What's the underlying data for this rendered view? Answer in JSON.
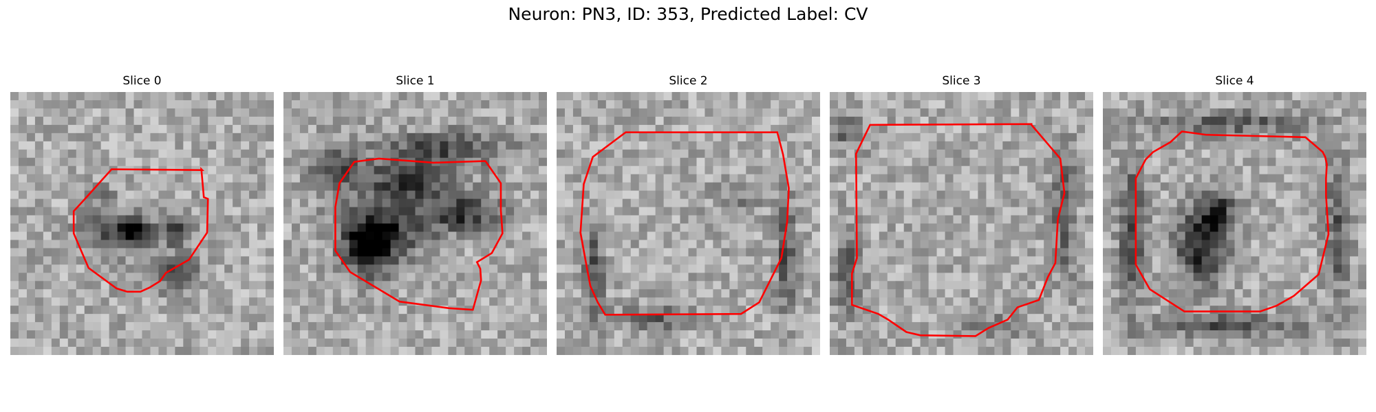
{
  "figure": {
    "title": "Neuron: PN3, ID: 353, Predicted Label: CV"
  },
  "panels": [
    {
      "title": "Slice 0",
      "contour": [
        [
          7.8,
          -6
        ],
        [
          -3.2,
          -6.1
        ],
        [
          -6.7,
          -2.2
        ],
        [
          -7.8,
          -1
        ],
        [
          -7.8,
          1.7
        ],
        [
          -6,
          5.9
        ],
        [
          -2.6,
          8.4
        ],
        [
          -1.3,
          8.8
        ],
        [
          0.3,
          8.8
        ],
        [
          1.4,
          8.3
        ],
        [
          2.7,
          7.5
        ],
        [
          3.4,
          6.5
        ],
        [
          6.2,
          4.9
        ],
        [
          8.4,
          1.6
        ],
        [
          8.5,
          -2.5
        ],
        [
          8,
          -2.7
        ],
        [
          7.7,
          -6.1
        ]
      ],
      "dark_regions": [
        [
          -3,
          1.2,
          4.5,
          2.2,
          0.7
        ],
        [
          -0.9,
          0.6,
          1.6,
          1.3,
          0.9
        ],
        [
          4.2,
          0.8,
          1.9,
          1.6,
          0.8
        ],
        [
          3.6,
          5.9,
          3.5,
          2.2,
          0.5
        ],
        [
          -5,
          -3.5,
          2,
          1.3,
          0.35
        ]
      ]
    },
    {
      "title": "Slice 1",
      "contour": [
        [
          9,
          -7.1
        ],
        [
          2.7,
          -6.9
        ],
        [
          -3.9,
          -7.4
        ],
        [
          -6.9,
          -7
        ],
        [
          -8.7,
          -4.4
        ],
        [
          -9.2,
          -1.5
        ],
        [
          -9.2,
          3.8
        ],
        [
          -7.4,
          6.4
        ],
        [
          -1.4,
          10
        ],
        [
          4.6,
          10.8
        ],
        [
          7.5,
          11
        ],
        [
          8.5,
          7.4
        ],
        [
          8.4,
          6
        ],
        [
          8,
          5.2
        ],
        [
          9.8,
          4.1
        ],
        [
          11.1,
          1.7
        ],
        [
          10.9,
          -1.1
        ],
        [
          10.9,
          -4.4
        ],
        [
          9.1,
          -7
        ]
      ],
      "dark_regions": [
        [
          -5.6,
          3.2,
          3,
          3.6,
          0.95
        ],
        [
          -3.6,
          0.8,
          5.4,
          3.2,
          0.75
        ],
        [
          -1,
          -5.1,
          4.7,
          2.5,
          0.85
        ],
        [
          5.8,
          -1.3,
          4.4,
          2.3,
          0.8
        ],
        [
          3,
          -9,
          8,
          2.2,
          0.6
        ],
        [
          -10,
          -6.5,
          3,
          3,
          0.7
        ]
      ]
    },
    {
      "title": "Slice 2",
      "contour": [
        [
          11.2,
          -10.6
        ],
        [
          -7.1,
          -10.6
        ],
        [
          -11.1,
          -7.6
        ],
        [
          -12.2,
          -4.3
        ],
        [
          -12.6,
          1.6
        ],
        [
          -11.8,
          6
        ],
        [
          -11.4,
          8.1
        ],
        [
          -10.5,
          10.1
        ],
        [
          -9.6,
          11.6
        ],
        [
          6.9,
          11.5
        ],
        [
          9.1,
          10.1
        ],
        [
          11.8,
          4.7
        ],
        [
          12.5,
          0.3
        ],
        [
          12.7,
          -3.8
        ],
        [
          12,
          -7.9
        ],
        [
          11.3,
          -10.6
        ]
      ],
      "dark_regions": [
        [
          -11.5,
          6,
          1.2,
          6,
          0.6
        ],
        [
          11.8,
          4,
          1.2,
          7,
          0.6
        ],
        [
          -4,
          11.5,
          4,
          1.4,
          0.5
        ],
        [
          6,
          -3,
          3,
          2,
          0.3
        ]
      ]
    },
    {
      "title": "Slice 3",
      "contour": [
        [
          9,
          -11.6
        ],
        [
          -10.6,
          -11.5
        ],
        [
          -12.3,
          -8
        ],
        [
          -12.2,
          4.7
        ],
        [
          -12.8,
          6.6
        ],
        [
          -12.8,
          10.4
        ],
        [
          -9.6,
          11.5
        ],
        [
          -8.4,
          12.2
        ],
        [
          -6.2,
          13.7
        ],
        [
          -4.5,
          14.1
        ],
        [
          2.2,
          14.2
        ],
        [
          3.8,
          13.2
        ],
        [
          6.1,
          12.2
        ],
        [
          7.3,
          10.7
        ],
        [
          9.9,
          9.8
        ],
        [
          11,
          7
        ],
        [
          11.9,
          5.3
        ],
        [
          12.2,
          0
        ],
        [
          13,
          -3.2
        ],
        [
          12.5,
          -7.4
        ],
        [
          9,
          -11.5
        ]
      ],
      "dark_regions": [
        [
          -14,
          6,
          1.5,
          5,
          0.6
        ],
        [
          12.5,
          -1,
          1.4,
          8,
          0.55
        ],
        [
          -14,
          -11,
          3,
          2,
          0.4
        ],
        [
          3,
          12.5,
          4,
          1.4,
          0.4
        ]
      ]
    },
    {
      "title": "Slice 4",
      "contour": [
        [
          9.1,
          -10
        ],
        [
          -3,
          -10.3
        ],
        [
          -5.9,
          -10.7
        ],
        [
          -7.3,
          -9.4
        ],
        [
          -9.4,
          -8.2
        ],
        [
          -10.3,
          -7.3
        ],
        [
          -11.5,
          -5
        ],
        [
          -11.5,
          -3.2
        ],
        [
          -11.5,
          5.5
        ],
        [
          -9.8,
          8.5
        ],
        [
          -5.6,
          11.2
        ],
        [
          3.6,
          11.2
        ],
        [
          5.6,
          10.5
        ],
        [
          7.7,
          9.3
        ],
        [
          10.7,
          6.7
        ],
        [
          11.9,
          1.8
        ],
        [
          11.6,
          -2.9
        ],
        [
          11.6,
          -5
        ],
        [
          11.7,
          -6.7
        ],
        [
          11.5,
          -7.6
        ],
        [
          11.2,
          -8.2
        ],
        [
          9.1,
          -10
        ]
      ],
      "dark_regions": [
        [
          -4,
          3,
          3,
          4.5,
          0.95
        ],
        [
          -2,
          -1.5,
          2.2,
          2.2,
          0.75
        ],
        [
          -12.5,
          1,
          1.6,
          9,
          0.65
        ],
        [
          12.5,
          1,
          1.5,
          8,
          0.55
        ],
        [
          0,
          -12.3,
          9,
          1.4,
          0.55
        ],
        [
          0,
          12.4,
          9,
          1.4,
          0.6
        ]
      ]
    }
  ]
}
